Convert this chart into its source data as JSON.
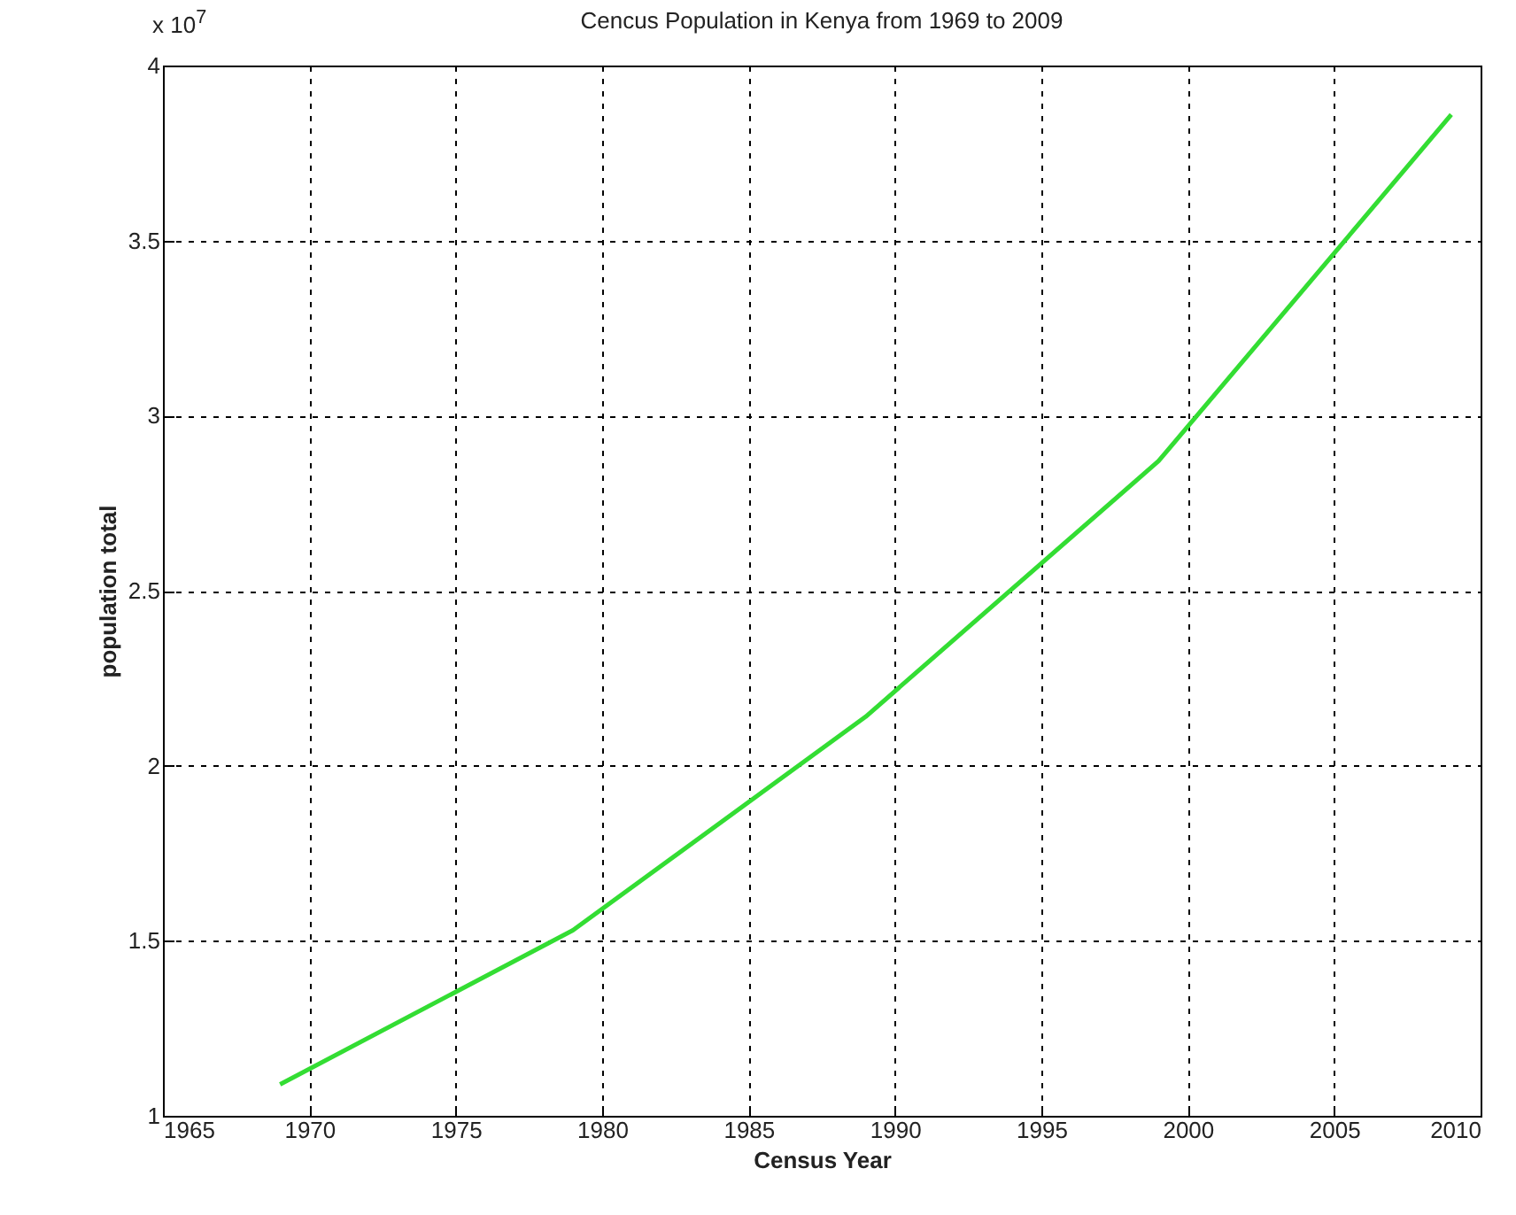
{
  "chart_data": {
    "type": "line",
    "title": "Cencus Population in Kenya from 1969 to 2009",
    "xlabel": "Census Year",
    "ylabel": "population total",
    "annotations": [
      "x 10$^{7}$"
    ],
    "x": [
      1969,
      1979,
      1989,
      1999,
      2009
    ],
    "series": [
      {
        "color": "#33dd33",
        "values": [
          1.09,
          1.53,
          2.14,
          2.87,
          3.86
        ]
      }
    ],
    "xlim": [
      1965,
      2010
    ],
    "xticks": [
      1965,
      1970,
      1975,
      1980,
      1985,
      1990,
      1995,
      2000,
      2005,
      2010
    ],
    "ylim": [
      1,
      4
    ],
    "yticks": [
      1,
      1.5,
      2,
      2.5,
      3,
      3.5,
      4
    ],
    "grid": true,
    "line_style": "solid"
  }
}
